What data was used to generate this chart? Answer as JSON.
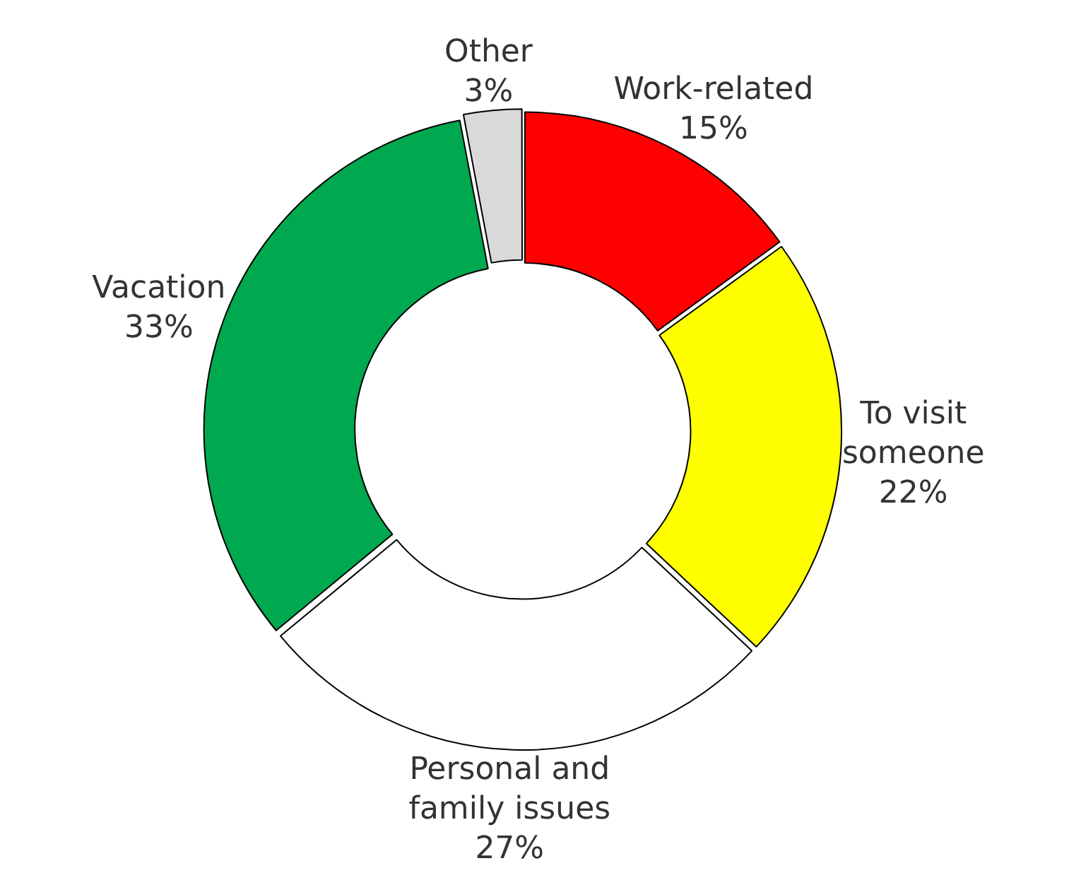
{
  "chart_data": {
    "type": "donut",
    "categories": [
      "Work-related",
      "To visit someone",
      "Personal and family issues",
      "Vacation",
      "Other"
    ],
    "values": [
      15,
      22,
      27,
      33,
      3
    ],
    "colors": [
      "#ff0000",
      "#ffff00",
      "#ffffff",
      "#00a84f",
      "#d9d9d9"
    ],
    "value_labels": [
      "15%",
      "22%",
      "27%",
      "33%",
      "3%"
    ],
    "legend": false
  }
}
